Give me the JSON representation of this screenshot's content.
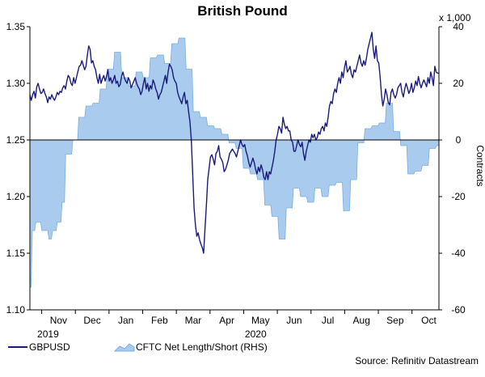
{
  "chart_data": {
    "type": "line",
    "title": "British Pound",
    "left_axis": {
      "ylim": [
        1.1,
        1.35
      ],
      "ticks": [
        "1.10",
        "1.15",
        "1.20",
        "1.25",
        "1.30",
        "1.35"
      ]
    },
    "right_axis": {
      "ylim": [
        -60,
        40
      ],
      "ticks": [
        "-60",
        "-40",
        "-20",
        "0",
        "20",
        "40"
      ],
      "label": "Contracts",
      "multiplier": "x 1,000"
    },
    "x_ticks": [
      "Nov",
      "Dec",
      "Jan",
      "Feb",
      "Mar",
      "Apr",
      "May",
      "Jun",
      "Jul",
      "Aug",
      "Sep",
      "Oct"
    ],
    "years": [
      "2019",
      "2020"
    ],
    "grid": false,
    "legend_position": "bottom-left",
    "colors": {
      "line": "#1a1a7a",
      "area": "#a9cbee",
      "area_edge": "#7aaee0"
    },
    "series": [
      {
        "name": "GBPUSD",
        "axis": "left",
        "values": [
          1.29,
          1.285,
          1.29,
          1.293,
          1.287,
          1.297,
          1.3,
          1.295,
          1.291,
          1.292,
          1.295,
          1.291,
          1.288,
          1.283,
          1.288,
          1.286,
          1.29,
          1.287,
          1.285,
          1.288,
          1.292,
          1.29,
          1.293,
          1.292,
          1.296,
          1.298,
          1.295,
          1.302,
          1.307,
          1.305,
          1.3,
          1.298,
          1.305,
          1.3,
          1.305,
          1.31,
          1.315,
          1.316,
          1.32,
          1.316,
          1.312,
          1.315,
          1.325,
          1.333,
          1.33,
          1.318,
          1.32,
          1.315,
          1.312,
          1.305,
          1.3,
          1.308,
          1.3,
          1.304,
          1.307,
          1.302,
          1.306,
          1.312,
          1.302,
          1.305,
          1.3,
          1.303,
          1.307,
          1.3,
          1.302,
          1.297,
          1.299,
          1.306,
          1.31,
          1.305,
          1.302,
          1.3,
          1.305,
          1.302,
          1.296,
          1.299,
          1.302,
          1.305,
          1.3,
          1.297,
          1.295,
          1.29,
          1.293,
          1.3,
          1.305,
          1.295,
          1.3,
          1.293,
          1.298,
          1.295,
          1.303,
          1.3,
          1.295,
          1.292,
          1.286,
          1.29,
          1.292,
          1.297,
          1.302,
          1.307,
          1.3,
          1.31,
          1.317,
          1.315,
          1.312,
          1.305,
          1.302,
          1.3,
          1.292,
          1.288,
          1.285,
          1.282,
          1.288,
          1.292,
          1.282,
          1.285,
          1.275,
          1.266,
          1.25,
          1.22,
          1.19,
          1.175,
          1.165,
          1.168,
          1.162,
          1.158,
          1.155,
          1.15,
          1.172,
          1.192,
          1.215,
          1.225,
          1.235,
          1.237,
          1.233,
          1.228,
          1.238,
          1.24,
          1.245,
          1.235,
          1.233,
          1.23,
          1.222,
          1.224,
          1.228,
          1.232,
          1.238,
          1.24,
          1.242,
          1.24,
          1.238,
          1.235,
          1.24,
          1.245,
          1.25,
          1.246,
          1.244,
          1.246,
          1.24,
          1.236,
          1.23,
          1.226,
          1.23,
          1.234,
          1.23,
          1.224,
          1.22,
          1.226,
          1.222,
          1.228,
          1.224,
          1.217,
          1.215,
          1.222,
          1.215,
          1.222,
          1.22,
          1.226,
          1.232,
          1.24,
          1.25,
          1.255,
          1.262,
          1.26,
          1.256,
          1.27,
          1.264,
          1.26,
          1.262,
          1.258,
          1.258,
          1.25,
          1.248,
          1.24,
          1.24,
          1.245,
          1.25,
          1.246,
          1.244,
          1.248,
          1.238,
          1.232,
          1.24,
          1.245,
          1.25,
          1.248,
          1.255,
          1.252,
          1.255,
          1.25,
          1.252,
          1.257,
          1.255,
          1.26,
          1.262,
          1.258,
          1.265,
          1.262,
          1.27,
          1.28,
          1.284,
          1.282,
          1.291,
          1.295,
          1.292,
          1.3,
          1.305,
          1.3,
          1.31,
          1.305,
          1.314,
          1.32,
          1.31,
          1.312,
          1.315,
          1.308,
          1.305,
          1.312,
          1.31,
          1.315,
          1.32,
          1.325,
          1.318,
          1.315,
          1.32,
          1.316,
          1.322,
          1.33,
          1.335,
          1.34,
          1.345,
          1.33,
          1.322,
          1.333,
          1.32,
          1.318,
          1.306,
          1.29,
          1.28,
          1.286,
          1.295,
          1.29,
          1.283,
          1.281,
          1.292,
          1.295,
          1.29,
          1.287,
          1.29,
          1.296,
          1.298,
          1.3,
          1.292,
          1.288,
          1.295,
          1.3,
          1.296,
          1.291,
          1.294,
          1.3,
          1.292,
          1.296,
          1.302,
          1.298,
          1.306,
          1.3,
          1.296,
          1.3,
          1.303,
          1.3,
          1.297,
          1.305,
          1.3,
          1.31,
          1.305,
          1.298,
          1.315,
          1.31,
          1.309,
          1.309
        ]
      },
      {
        "name": "CFTC Net Length/Short (RHS)",
        "axis": "right",
        "values": [
          -52,
          -52,
          -32,
          -32,
          -32,
          -29,
          -29,
          -29,
          -29,
          -29,
          -32,
          -32,
          -32,
          -32,
          -32,
          -32,
          -35,
          -35,
          -35,
          -32,
          -32,
          -32,
          -32,
          -29,
          -29,
          -29,
          -29,
          -22,
          -22,
          -22,
          -5,
          -5,
          -5,
          -5,
          -5,
          -5,
          0,
          0,
          0,
          0,
          0,
          8,
          8,
          8,
          8,
          8,
          8,
          12,
          12,
          12,
          12,
          12,
          12,
          13,
          13,
          13,
          13,
          13,
          13,
          18,
          18,
          18,
          18,
          18,
          18,
          25,
          25,
          25,
          25,
          25,
          25,
          31,
          31,
          31,
          31,
          31,
          31,
          22,
          22,
          22,
          22,
          22,
          22,
          19,
          19,
          19,
          19,
          19,
          19,
          24,
          24,
          24,
          24,
          24,
          24,
          22,
          22,
          22,
          22,
          22,
          22,
          29,
          29,
          29,
          29,
          29,
          29,
          30,
          30,
          30,
          30,
          30,
          30,
          27,
          27,
          27,
          27,
          27,
          27,
          34,
          34,
          34,
          34,
          34,
          34,
          36,
          36,
          36,
          36,
          36,
          36,
          25,
          25,
          25,
          25,
          25,
          25,
          10,
          10,
          10,
          10,
          10,
          10,
          8,
          8,
          8,
          8,
          8,
          8,
          5,
          5,
          5,
          5,
          5,
          5,
          4,
          4,
          4,
          4,
          4,
          4,
          2,
          2,
          2,
          2,
          2,
          2,
          -1,
          -1,
          -1,
          -1,
          -1,
          -1,
          -3,
          -3,
          -3,
          -3,
          -3,
          -3,
          -10,
          -10,
          -10,
          -10,
          -10,
          -10,
          -12,
          -12,
          -12,
          -12,
          -12,
          -12,
          -14,
          -14,
          -14,
          -14,
          -14,
          -14,
          -23,
          -23,
          -23,
          -23,
          -23,
          -23,
          -27,
          -27,
          -27,
          -27,
          -27,
          -27,
          -35,
          -35,
          -35,
          -35,
          -35,
          -35,
          -24,
          -24,
          -24,
          -24,
          -24,
          -24,
          -17,
          -17,
          -17,
          -17,
          -17,
          -17,
          -20,
          -20,
          -20,
          -20,
          -20,
          -20,
          -22,
          -22,
          -22,
          -22,
          -22,
          -22,
          -17,
          -17,
          -17,
          -17,
          -17,
          -17,
          -20,
          -20,
          -20,
          -20,
          -20,
          -20,
          -16,
          -16,
          -16,
          -16,
          -16,
          -16,
          -15,
          -15,
          -15,
          -15,
          -15,
          -15,
          -25,
          -25,
          -25,
          -25,
          -25,
          -25,
          -14,
          -14,
          -14,
          -14,
          -14,
          -14,
          -1,
          -1,
          -1,
          -1,
          -1,
          -1,
          4,
          4,
          4,
          4,
          4,
          4,
          5,
          5,
          5,
          5,
          5,
          5,
          6,
          6,
          6,
          6,
          6,
          6,
          13,
          13,
          13,
          13,
          13,
          13,
          3,
          3,
          3,
          3,
          3,
          3,
          -2,
          -2,
          -2,
          -2,
          -2,
          -2,
          -12,
          -12,
          -12,
          -12,
          -12,
          -12,
          -11,
          -11,
          -11,
          -11,
          -11,
          -11,
          -9,
          -9,
          -9,
          -9,
          -9,
          -9,
          -3,
          -3,
          -3,
          -3,
          -3,
          -3,
          -2,
          -2,
          -2
        ]
      }
    ]
  },
  "footer": {
    "source": "Source: Refinitiv Datastream"
  }
}
